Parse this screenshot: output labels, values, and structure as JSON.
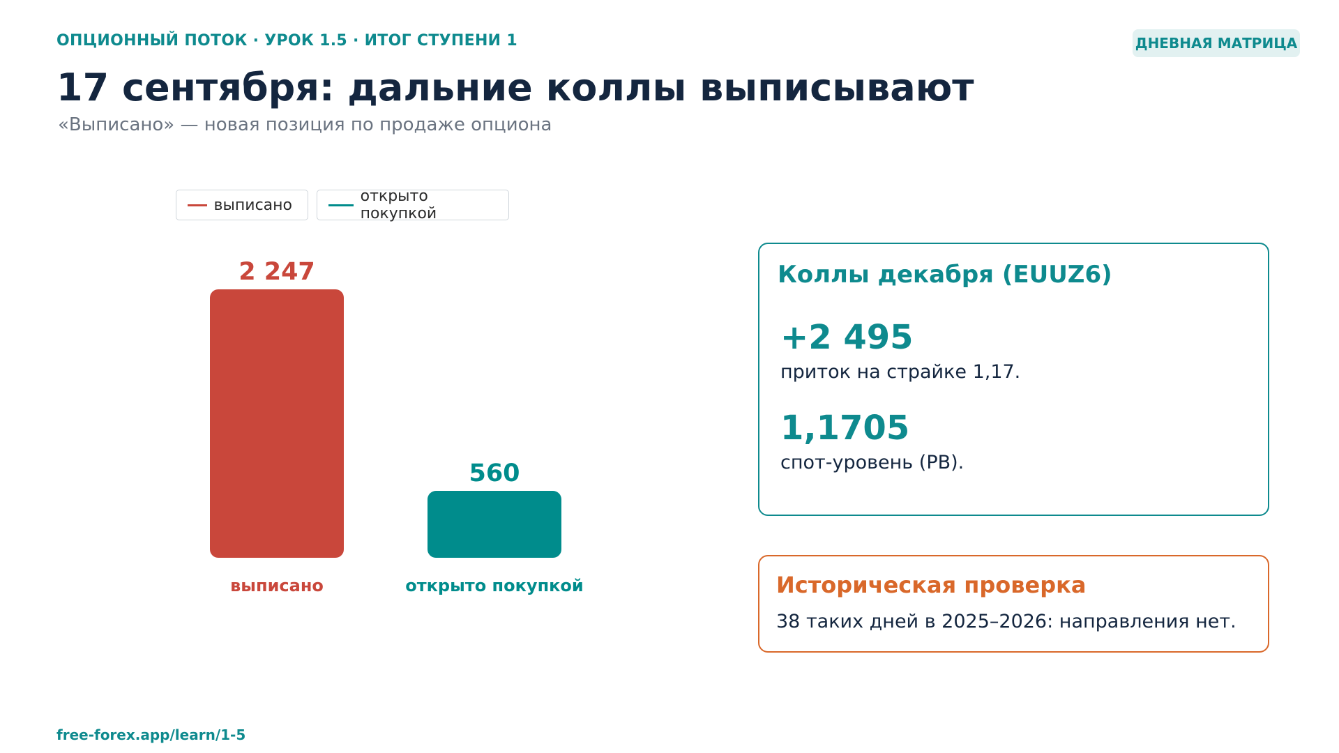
{
  "header": {
    "eyebrow": "ОПЦИОННЫЙ ПОТОК · УРОК 1.5 · ИТОГ СТУПЕНИ 1",
    "badge": "ДНЕВНАЯ МАТРИЦА",
    "title": "17 сентября: дальние коллы выписывают",
    "subtitle": "«Выписано» — новая позиция по продаже опциона"
  },
  "legend": [
    {
      "label": "выписано",
      "color": "#c9473b"
    },
    {
      "label": "открыто покупкой",
      "color": "#008c8c"
    }
  ],
  "chart_data": {
    "type": "bar",
    "categories": [
      "выписано",
      "открыто покупкой"
    ],
    "values": [
      2247,
      560
    ],
    "value_labels": [
      "2 247",
      "560"
    ],
    "colors": [
      "#c9473b",
      "#008c8c"
    ],
    "ylim": [
      0,
      2247
    ],
    "grid": false,
    "legend_position": "top-left"
  },
  "card_euuz": {
    "title": "Коллы декабря (EUUZ6)",
    "metric1_value": "+2 495",
    "metric1_desc": "приток на страйке 1,17.",
    "metric2_value": "1,1705",
    "metric2_desc": "спот-уровень (РВ)."
  },
  "card_hist": {
    "title": "Историческая проверка",
    "text": "38 таких дней в 2025–2026: направления нет."
  },
  "footer": {
    "url": "free-forex.app/learn/1-5"
  }
}
